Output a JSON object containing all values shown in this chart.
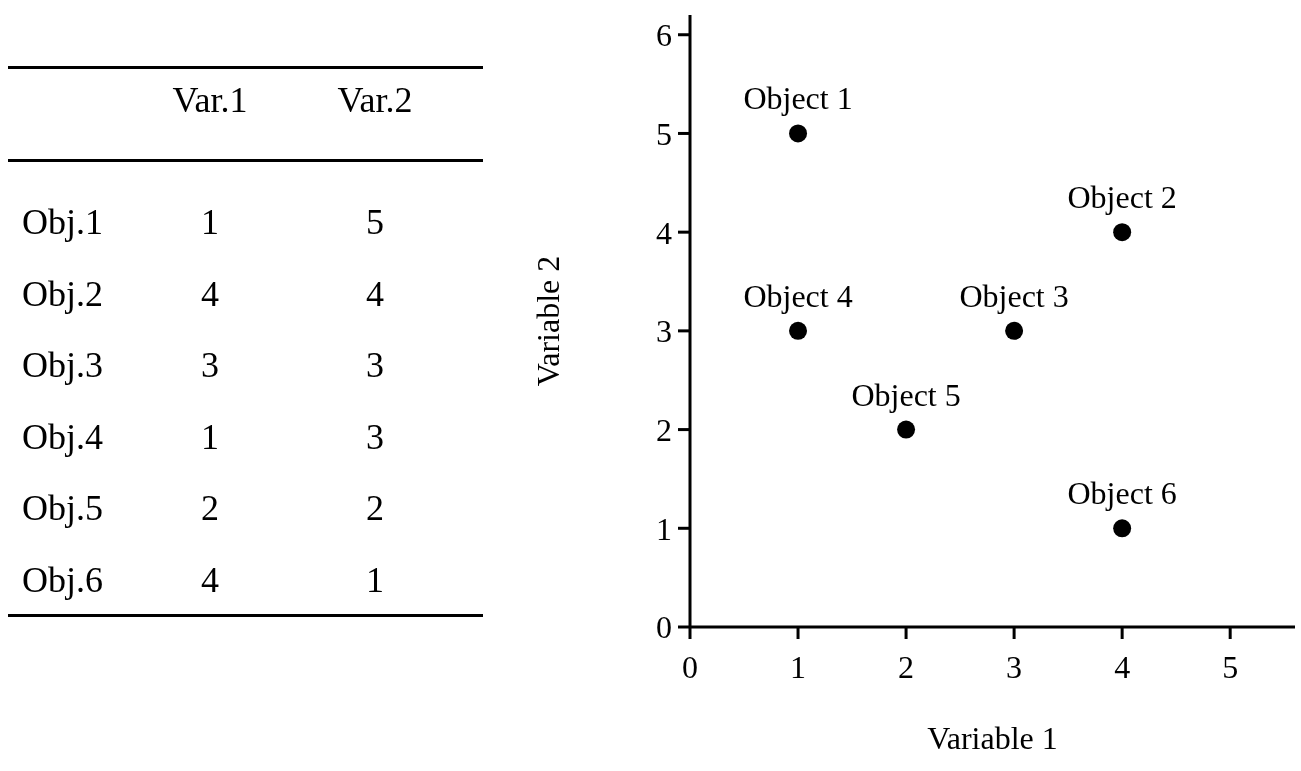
{
  "chart_data": [
    {
      "type": "other",
      "categories": [
        "Obj.1",
        "Obj.2",
        "Obj.3",
        "Obj.4",
        "Obj.5",
        "Obj.6"
      ],
      "data_labels": true,
      "series": [
        {
          "name": "Var.1",
          "values": [
            1,
            4,
            3,
            1,
            2,
            4
          ]
        },
        {
          "name": "Var.2",
          "values": [
            5,
            4,
            3,
            3,
            2,
            1
          ]
        }
      ]
    },
    {
      "type": "scatter",
      "xlabel": "Variable 1",
      "ylabel": "Variable 2",
      "x": [
        1,
        4,
        3,
        1,
        2,
        4
      ],
      "values": [
        5,
        4,
        3,
        3,
        2,
        1
      ],
      "color": "#000000",
      "marker": "circle",
      "xlim": [
        0,
        5.6
      ],
      "xticks": [
        0,
        1,
        2,
        3,
        4,
        5
      ],
      "ylim": [
        0,
        6.2
      ],
      "yticks": [
        0,
        1,
        2,
        3,
        4,
        5,
        6
      ],
      "grid": false,
      "legend": false,
      "annotations": [
        {
          "text": "Object 1",
          "x": 1,
          "y": 5
        },
        {
          "text": "Object 2",
          "x": 4,
          "y": 4
        },
        {
          "text": "Object 3",
          "x": 3,
          "y": 3
        },
        {
          "text": "Object 4",
          "x": 1,
          "y": 3
        },
        {
          "text": "Object 5",
          "x": 2,
          "y": 2
        },
        {
          "text": "Object 6",
          "x": 4,
          "y": 1
        }
      ]
    }
  ]
}
